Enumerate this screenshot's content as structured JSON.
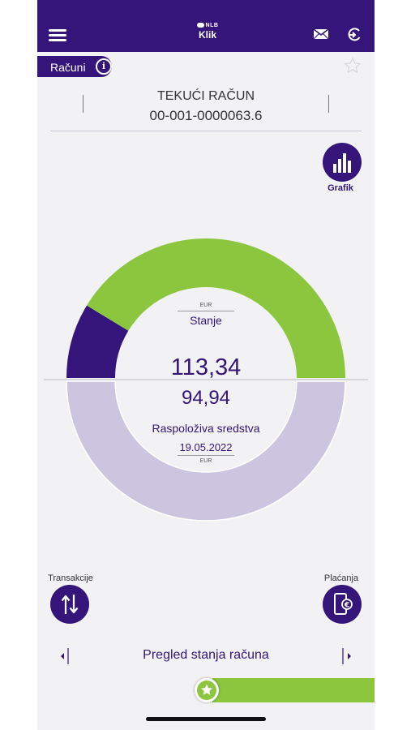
{
  "header": {
    "logo_brand": "NLB",
    "logo_name": "Klik",
    "menu_icon": "hamburger-menu-icon",
    "mail_icon": "mail-icon",
    "logout_icon": "logout-icon"
  },
  "account_tab": {
    "label": "Računi",
    "info_icon": "i"
  },
  "account": {
    "type": "TEKUĆI RAČUN",
    "number": "00-001-0000063.6"
  },
  "grafik": {
    "label": "Grafik"
  },
  "balance": {
    "top_currency": "EUR",
    "top_label": "Stanje",
    "balance_value": "113,34",
    "available_value": "94,94",
    "available_label": "Raspoloživa sredstva",
    "date": "19.05.2022",
    "bottom_currency": "EUR"
  },
  "gauge": {
    "top_green_fraction": 0.826,
    "colors": {
      "green": "#8cc63f",
      "purple": "#35157a",
      "lavender": "#cbc5df"
    }
  },
  "actions": {
    "transactions_label": "Transakcije",
    "payments_label": "Plaćanja"
  },
  "bottom_nav": {
    "label": "Pregled stanja računa"
  },
  "theme": {
    "primary": "#35157a",
    "accent": "#8cc63f"
  }
}
